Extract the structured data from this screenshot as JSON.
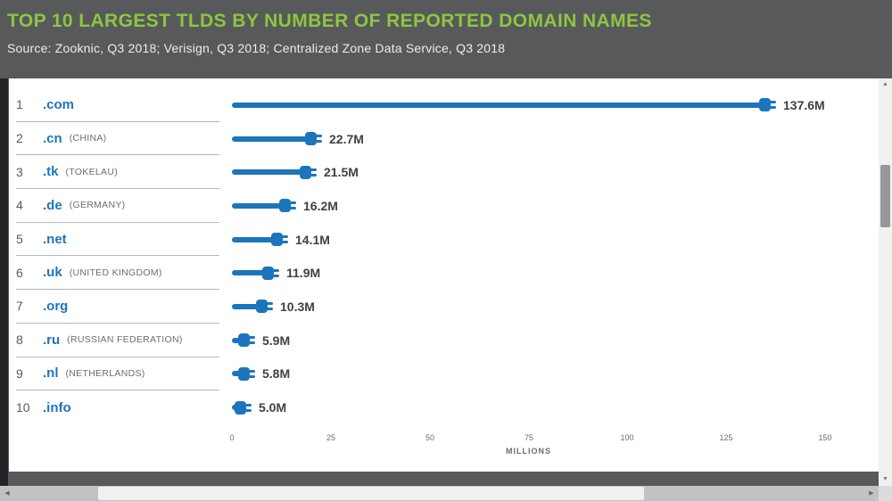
{
  "header": {
    "title": "TOP 10 LARGEST TLDS BY NUMBER OF REPORTED DOMAIN NAMES",
    "source": "Source: Zooknic, Q3 2018; Verisign, Q3 2018; Centralized Zone Data Service, Q3 2018"
  },
  "chart_data": {
    "type": "bar",
    "orientation": "horizontal",
    "title": "TOP 10 LARGEST TLDS BY NUMBER OF REPORTED DOMAIN NAMES",
    "xlabel": "MILLIONS",
    "xlim": [
      0,
      150
    ],
    "x_ticks": [
      0,
      25,
      50,
      75,
      100,
      125,
      150
    ],
    "grid": false,
    "legend": "none",
    "rows": [
      {
        "rank": "1",
        "tld": ".com",
        "country": "",
        "value": 137.6,
        "label": "137.6M"
      },
      {
        "rank": "2",
        "tld": ".cn",
        "country": "(CHINA)",
        "value": 22.7,
        "label": "22.7M"
      },
      {
        "rank": "3",
        "tld": ".tk",
        "country": "(TOKELAU)",
        "value": 21.5,
        "label": "21.5M"
      },
      {
        "rank": "4",
        "tld": ".de",
        "country": "(GERMANY)",
        "value": 16.2,
        "label": "16.2M"
      },
      {
        "rank": "5",
        "tld": ".net",
        "country": "",
        "value": 14.1,
        "label": "14.1M"
      },
      {
        "rank": "6",
        "tld": ".uk",
        "country": "(UNITED KINGDOM)",
        "value": 11.9,
        "label": "11.9M"
      },
      {
        "rank": "7",
        "tld": ".org",
        "country": "",
        "value": 10.3,
        "label": "10.3M"
      },
      {
        "rank": "8",
        "tld": ".ru",
        "country": "(RUSSIAN FEDERATION)",
        "value": 5.9,
        "label": "5.9M"
      },
      {
        "rank": "9",
        "tld": ".nl",
        "country": "(NETHERLANDS)",
        "value": 5.8,
        "label": "5.8M"
      },
      {
        "rank": "10",
        "tld": ".info",
        "country": "",
        "value": 5.0,
        "label": "5.0M"
      }
    ]
  },
  "colors": {
    "header_bg": "#58595B",
    "title_green": "#8DC63F",
    "source_text": "#ECEDEE",
    "bar_blue": "#1C75BC",
    "tld_blue": "#1C75BC",
    "value_text": "#414042",
    "country_text": "#6D6E71",
    "separator": "#B5B7BA",
    "card_bg": "#FFFFFF"
  },
  "icons": {
    "bar_end": "plug-icon",
    "scroll_up": "scroll-up-icon",
    "scroll_down": "scroll-down-icon",
    "scroll_left": "scroll-left-icon",
    "scroll_right": "scroll-right-icon"
  }
}
